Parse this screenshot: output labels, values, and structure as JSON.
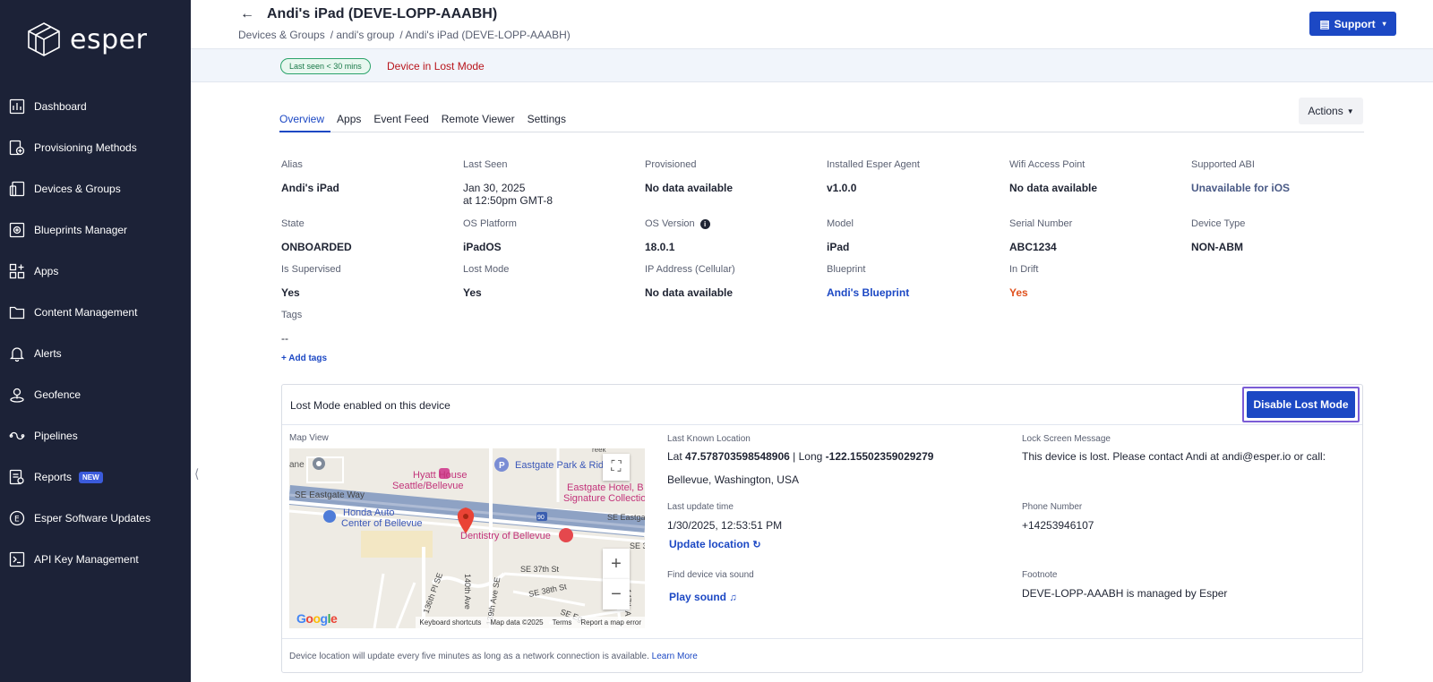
{
  "sidebar": {
    "logo_text": "esper",
    "items": [
      {
        "label": "Dashboard",
        "icon": "chart-icon"
      },
      {
        "label": "Provisioning Methods",
        "icon": "provisioning-icon"
      },
      {
        "label": "Devices & Groups",
        "icon": "devices-icon"
      },
      {
        "label": "Blueprints Manager",
        "icon": "blueprint-icon"
      },
      {
        "label": "Apps",
        "icon": "apps-icon"
      },
      {
        "label": "Content Management",
        "icon": "folder-icon"
      },
      {
        "label": "Alerts",
        "icon": "bell-icon"
      },
      {
        "label": "Geofence",
        "icon": "geofence-icon"
      },
      {
        "label": "Pipelines",
        "icon": "pipelines-icon"
      },
      {
        "label": "Reports",
        "icon": "reports-icon",
        "badge": "NEW"
      },
      {
        "label": "Esper Software Updates",
        "icon": "updates-icon"
      },
      {
        "label": "API Key Management",
        "icon": "terminal-icon"
      }
    ]
  },
  "header": {
    "title": "Andi's iPad (DEVE-LOPP-AAABH)",
    "breadcrumb": [
      "Devices & Groups",
      "/ andi's group",
      "/ Andi's iPad (DEVE-LOPP-AAABH)"
    ],
    "support_label": "Support"
  },
  "status": {
    "last_seen_badge": "Last seen < 30 mins",
    "lost_mode_text": "Device in Lost Mode"
  },
  "tabs": [
    "Overview",
    "Apps",
    "Event Feed",
    "Remote Viewer",
    "Settings"
  ],
  "actions_label": "Actions",
  "fields": {
    "alias": {
      "label": "Alias",
      "value": "Andi's iPad"
    },
    "last_seen": {
      "label": "Last Seen",
      "value": "Jan 30, 2025",
      "value2": "at 12:50pm GMT-8"
    },
    "provisioned": {
      "label": "Provisioned",
      "value": "No data available"
    },
    "agent": {
      "label": "Installed Esper Agent",
      "value": "v1.0.0"
    },
    "wifi": {
      "label": "Wifi Access Point",
      "value": "No data available"
    },
    "abi": {
      "label": "Supported ABI",
      "value": "Unavailable for iOS"
    },
    "state": {
      "label": "State",
      "value": "ONBOARDED"
    },
    "os_platform": {
      "label": "OS Platform",
      "value": "iPadOS"
    },
    "os_version": {
      "label": "OS Version",
      "value": "18.0.1"
    },
    "model": {
      "label": "Model",
      "value": "iPad"
    },
    "serial": {
      "label": "Serial Number",
      "value": "ABC1234"
    },
    "device_type": {
      "label": "Device Type",
      "value": "NON-ABM"
    },
    "supervised": {
      "label": "Is Supervised",
      "value": "Yes"
    },
    "lost_mode": {
      "label": "Lost Mode",
      "value": "Yes"
    },
    "ip": {
      "label": "IP Address (Cellular)",
      "value": "No data available"
    },
    "blueprint": {
      "label": "Blueprint",
      "value": "Andi's Blueprint"
    },
    "drift": {
      "label": "In Drift",
      "value": "Yes"
    },
    "tags": {
      "label": "Tags",
      "value": "--"
    }
  },
  "add_tags": "+ Add tags",
  "lost_panel": {
    "title": "Lost Mode enabled on this device",
    "disable_button": "Disable Lost Mode",
    "map_view_label": "Map View",
    "last_location_label": "Last Known Location",
    "lat_label": "Lat",
    "lat": "47.578703598548906",
    "long_label": "| Long",
    "long": "-122.15502359029279",
    "address": "Bellevue, Washington, USA",
    "last_update_label": "Last update time",
    "last_update": "1/30/2025, 12:53:51 PM",
    "update_location": "Update location",
    "find_sound_label": "Find device via sound",
    "play_sound": "Play sound",
    "lock_msg_label": "Lock Screen Message",
    "lock_msg": "This device is lost. Please contact Andi at andi@esper.io or call:",
    "phone_label": "Phone Number",
    "phone": "+14253946107",
    "footnote_label": "Footnote",
    "footnote": "DEVE-LOPP-AAABH is managed by Esper",
    "footer_text": "Device location will update every five minutes as long as a network connection is available.",
    "learn_more": "Learn More"
  },
  "map": {
    "labels": {
      "hyatt1": "Hyatt House",
      "hyatt2": "Seattle/Bellevue",
      "eastgate_park": "Eastgate Park & Rid",
      "eastgate_hotel1": "Eastgate Hotel, B",
      "eastgate_hotel2": "Signature Collectio",
      "honda1": "Honda Auto",
      "honda2": "Center of Bellevue",
      "dentistry": "Dentistry of Bellevue",
      "se_eastgate": "SE Eastgate Way",
      "se_eastgate2": "SE Eastgate",
      "se37": "SE 37th St",
      "se38": "SE 38th St",
      "ane": "ane",
      "creek": "reek",
      "ave136": "136th Pl SE",
      "ave139": "139th Ave SE",
      "ave140": "140th Ave",
      "ave147": "147th A",
      "se_eg": "SE Eg",
      "se3": "SE 3",
      "route": "90",
      "parking": "P"
    },
    "footer": [
      "Keyboard shortcuts",
      "Map data ©2025",
      "Terms",
      "Report a map error"
    ],
    "google": "Google",
    "zoom_in": "+",
    "zoom_out": "−"
  }
}
